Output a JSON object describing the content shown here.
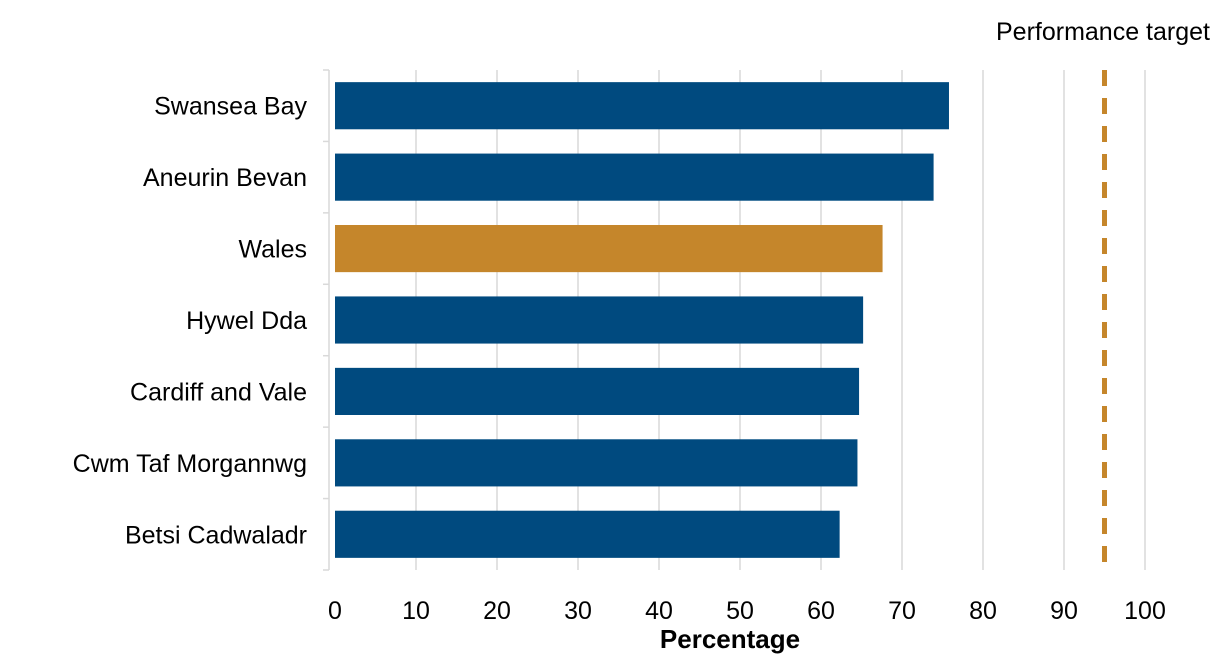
{
  "chart_data": {
    "type": "bar",
    "orientation": "horizontal",
    "categories": [
      "Swansea Bay",
      "Aneurin Bevan",
      "Wales",
      "Hywel Dda",
      "Cardiff and Vale",
      "Cwm Taf Morgannwg",
      "Betsi Cadwaladr"
    ],
    "values": [
      75.8,
      73.9,
      67.6,
      65.2,
      64.7,
      64.5,
      62.3
    ],
    "highlight_category": "Wales",
    "xlabel": "Percentage",
    "ylabel": "",
    "xlim": [
      0,
      100
    ],
    "xticks": [
      0,
      10,
      20,
      30,
      40,
      50,
      60,
      70,
      80,
      90,
      100
    ],
    "grid": true,
    "reference_line": {
      "label": "Performance target",
      "value": 95,
      "style": "dashed"
    },
    "colors": {
      "bar": "#004a7f",
      "highlight": "#c5862b",
      "target": "#c5862b"
    }
  }
}
